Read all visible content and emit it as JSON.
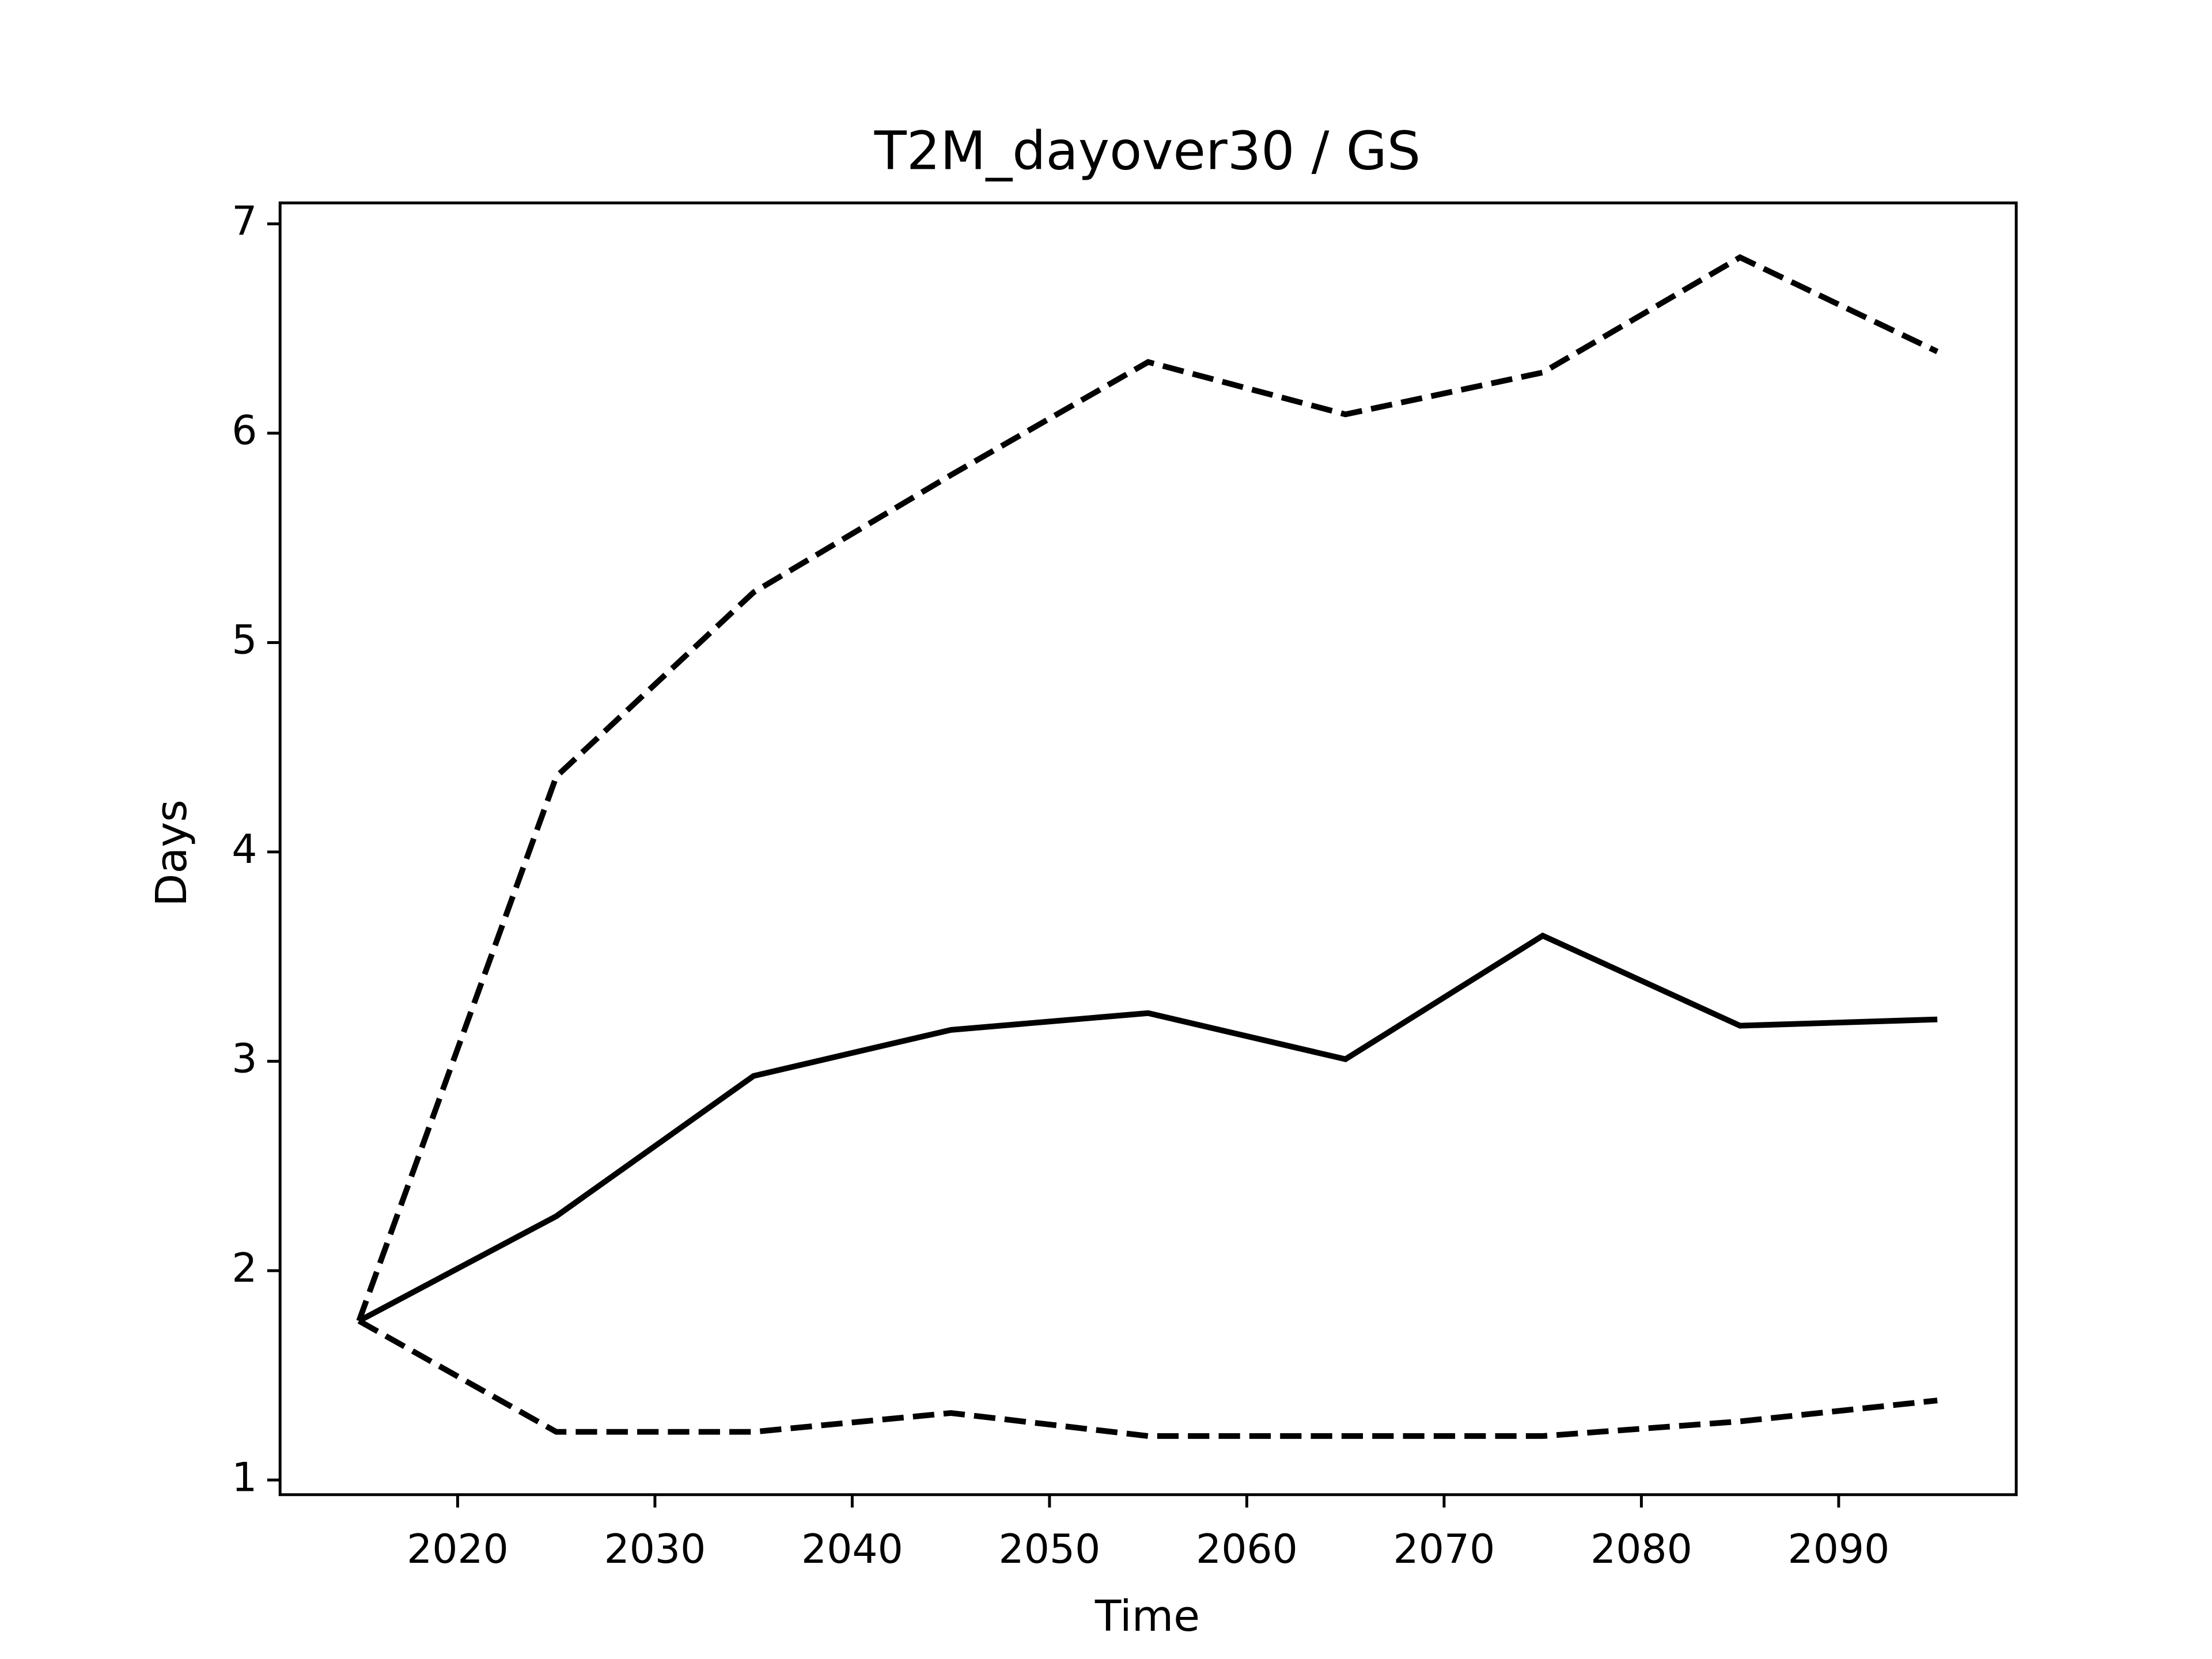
{
  "chart_data": {
    "type": "line",
    "title": "T2M_dayover30 / GS",
    "xlabel": "Time",
    "ylabel": "Days",
    "x": [
      2015,
      2025,
      2035,
      2045,
      2055,
      2065,
      2075,
      2085,
      2095
    ],
    "series": [
      {
        "color": "#000000",
        "linestyle": "solid",
        "values": [
          1.76,
          2.26,
          2.93,
          3.15,
          3.23,
          3.01,
          3.6,
          3.17,
          3.2
        ]
      },
      {
        "color": "#000000",
        "linestyle": "dashed",
        "values": [
          1.76,
          4.36,
          5.24,
          5.8,
          6.34,
          6.09,
          6.29,
          6.84,
          6.39
        ]
      },
      {
        "color": "#000000",
        "linestyle": "dashed",
        "values": [
          1.76,
          1.23,
          1.23,
          1.32,
          1.21,
          1.21,
          1.21,
          1.28,
          1.38
        ]
      }
    ],
    "xlim": [
      2011,
      2099
    ],
    "xticks": [
      2020,
      2030,
      2040,
      2050,
      2060,
      2070,
      2080,
      2090
    ],
    "ylim": [
      0.93,
      7.1
    ],
    "yticks": [
      1,
      2,
      3,
      4,
      5,
      6,
      7
    ],
    "grid": false
  }
}
